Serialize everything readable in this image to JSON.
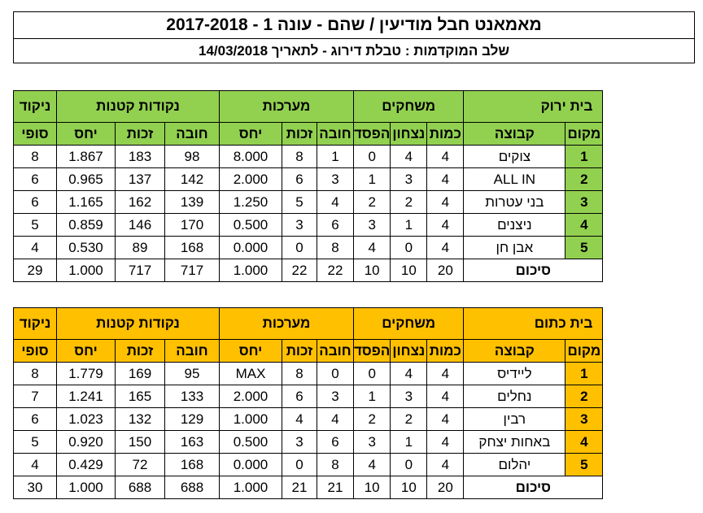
{
  "header": {
    "title": "מאמאנט חבל מודיעין / שהם   -   עונה 1   -   2017-2018",
    "subtitle": "שלב המוקדמות   :   טבלת דירוג - לתאריך 14/03/2018"
  },
  "column_headers": {
    "place": "מקום",
    "team": "קבוצה",
    "games_group": "משחקים",
    "sets_group": "מערכות",
    "points_group": "נקודות קטנות",
    "final_top": "ניקוד",
    "final_bottom": "סופי",
    "games": [
      "כמות",
      "נצחון",
      "הפסד"
    ],
    "sets": [
      "חובה",
      "זכות",
      "יחס"
    ],
    "points": [
      "חובה",
      "זכות",
      "יחס"
    ]
  },
  "sum_label": "סיכום",
  "tables": [
    {
      "house": "בית ירוק",
      "colors": {
        "header": "#92d050",
        "rank": "#92d050"
      },
      "rows": [
        {
          "place": "1",
          "team": "צוקים",
          "played": "4",
          "won": "4",
          "lost": "0",
          "sets_against": "1",
          "sets_for": "8",
          "sets_ratio": "8.000",
          "pts_against": "98",
          "pts_for": "183",
          "pts_ratio": "1.867",
          "final": "8"
        },
        {
          "place": "2",
          "team": "ALL IN",
          "played": "4",
          "won": "3",
          "lost": "1",
          "sets_against": "3",
          "sets_for": "6",
          "sets_ratio": "2.000",
          "pts_against": "142",
          "pts_for": "137",
          "pts_ratio": "0.965",
          "final": "6"
        },
        {
          "place": "3",
          "team": "בני עטרות",
          "played": "4",
          "won": "2",
          "lost": "2",
          "sets_against": "4",
          "sets_for": "5",
          "sets_ratio": "1.250",
          "pts_against": "139",
          "pts_for": "162",
          "pts_ratio": "1.165",
          "final": "6"
        },
        {
          "place": "4",
          "team": "ניצנים",
          "played": "4",
          "won": "1",
          "lost": "3",
          "sets_against": "6",
          "sets_for": "3",
          "sets_ratio": "0.500",
          "pts_against": "170",
          "pts_for": "146",
          "pts_ratio": "0.859",
          "final": "5"
        },
        {
          "place": "5",
          "team": "אבן חן",
          "played": "4",
          "won": "0",
          "lost": "4",
          "sets_against": "8",
          "sets_for": "0",
          "sets_ratio": "0.000",
          "pts_against": "168",
          "pts_for": "89",
          "pts_ratio": "0.530",
          "final": "4"
        }
      ],
      "sum": {
        "played": "20",
        "won": "10",
        "lost": "10",
        "sets_against": "22",
        "sets_for": "22",
        "sets_ratio": "1.000",
        "pts_against": "717",
        "pts_for": "717",
        "pts_ratio": "1.000",
        "final": "29"
      }
    },
    {
      "house": "בית כתום",
      "colors": {
        "header": "#ffc000",
        "rank": "#ffc000"
      },
      "rows": [
        {
          "place": "1",
          "team": "ליידיס",
          "played": "4",
          "won": "4",
          "lost": "0",
          "sets_against": "0",
          "sets_for": "8",
          "sets_ratio": "MAX",
          "pts_against": "95",
          "pts_for": "169",
          "pts_ratio": "1.779",
          "final": "8"
        },
        {
          "place": "2",
          "team": "נחלים",
          "played": "4",
          "won": "3",
          "lost": "1",
          "sets_against": "3",
          "sets_for": "6",
          "sets_ratio": "2.000",
          "pts_against": "133",
          "pts_for": "165",
          "pts_ratio": "1.241",
          "final": "7"
        },
        {
          "place": "3",
          "team": "רבין",
          "played": "4",
          "won": "2",
          "lost": "2",
          "sets_against": "4",
          "sets_for": "4",
          "sets_ratio": "1.000",
          "pts_against": "129",
          "pts_for": "132",
          "pts_ratio": "1.023",
          "final": "6"
        },
        {
          "place": "4",
          "team": "באחות יצחק",
          "played": "4",
          "won": "1",
          "lost": "3",
          "sets_against": "6",
          "sets_for": "3",
          "sets_ratio": "0.500",
          "pts_against": "163",
          "pts_for": "150",
          "pts_ratio": "0.920",
          "final": "5"
        },
        {
          "place": "5",
          "team": "יהלום",
          "played": "4",
          "won": "0",
          "lost": "4",
          "sets_against": "8",
          "sets_for": "0",
          "sets_ratio": "0.000",
          "pts_against": "168",
          "pts_for": "72",
          "pts_ratio": "0.429",
          "final": "4"
        }
      ],
      "sum": {
        "played": "20",
        "won": "10",
        "lost": "10",
        "sets_against": "21",
        "sets_for": "21",
        "sets_ratio": "1.000",
        "pts_against": "688",
        "pts_for": "688",
        "pts_ratio": "1.000",
        "final": "30"
      }
    }
  ]
}
